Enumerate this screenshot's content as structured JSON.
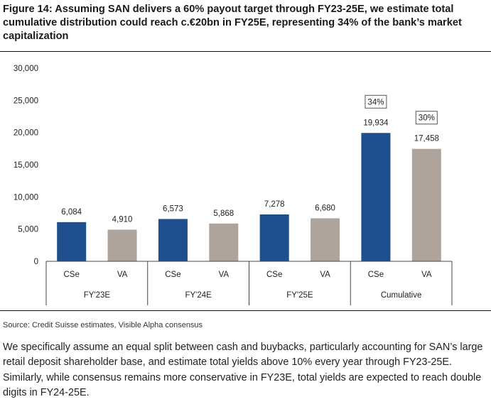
{
  "figure": {
    "title": "Figure 14: Assuming SAN delivers a 60% payout target through FY23-25E, we estimate total cumulative distribution could reach c.€20bn in FY25E, representing 34% of the bank’s market capitalization",
    "source": "Source: Credit Suisse estimates, Visible Alpha consensus",
    "body": "We specifically assume an equal split between cash and buybacks, particularly accounting for SAN’s large retail deposit shareholder base, and estimate total yields above 10% every year through FY23-25E. Similarly, while consensus remains more conservative in FY23E, total yields are expected to reach double digits in FY24-25E."
  },
  "chart_data": {
    "type": "bar",
    "title": "",
    "xlabel": "",
    "ylabel": "",
    "ylim": [
      0,
      30000
    ],
    "yticks": [
      0,
      5000,
      10000,
      15000,
      20000,
      25000,
      30000
    ],
    "ytick_labels": [
      "0",
      "5,000",
      "10,000",
      "15,000",
      "20,000",
      "25,000",
      "30,000"
    ],
    "grid": false,
    "groups": [
      "FY'23E",
      "FY'24E",
      "FY'25E",
      "Cumulative"
    ],
    "categories": [
      "CSe",
      "VA",
      "CSe",
      "VA",
      "CSe",
      "VA",
      "CSe",
      "VA"
    ],
    "values": [
      6084,
      4910,
      6573,
      5868,
      7278,
      6680,
      19934,
      17458
    ],
    "value_labels": [
      "6,084",
      "4,910",
      "6,573",
      "5,868",
      "7,278",
      "6,680",
      "19,934",
      "17,458"
    ],
    "colors": [
      "#1f4e8c",
      "#aea49c",
      "#1f4e8c",
      "#aea49c",
      "#1f4e8c",
      "#aea49c",
      "#1f4e8c",
      "#aea49c"
    ],
    "annotations": [
      {
        "bar_index": 6,
        "text": "34%"
      },
      {
        "bar_index": 7,
        "text": "30%"
      }
    ]
  }
}
